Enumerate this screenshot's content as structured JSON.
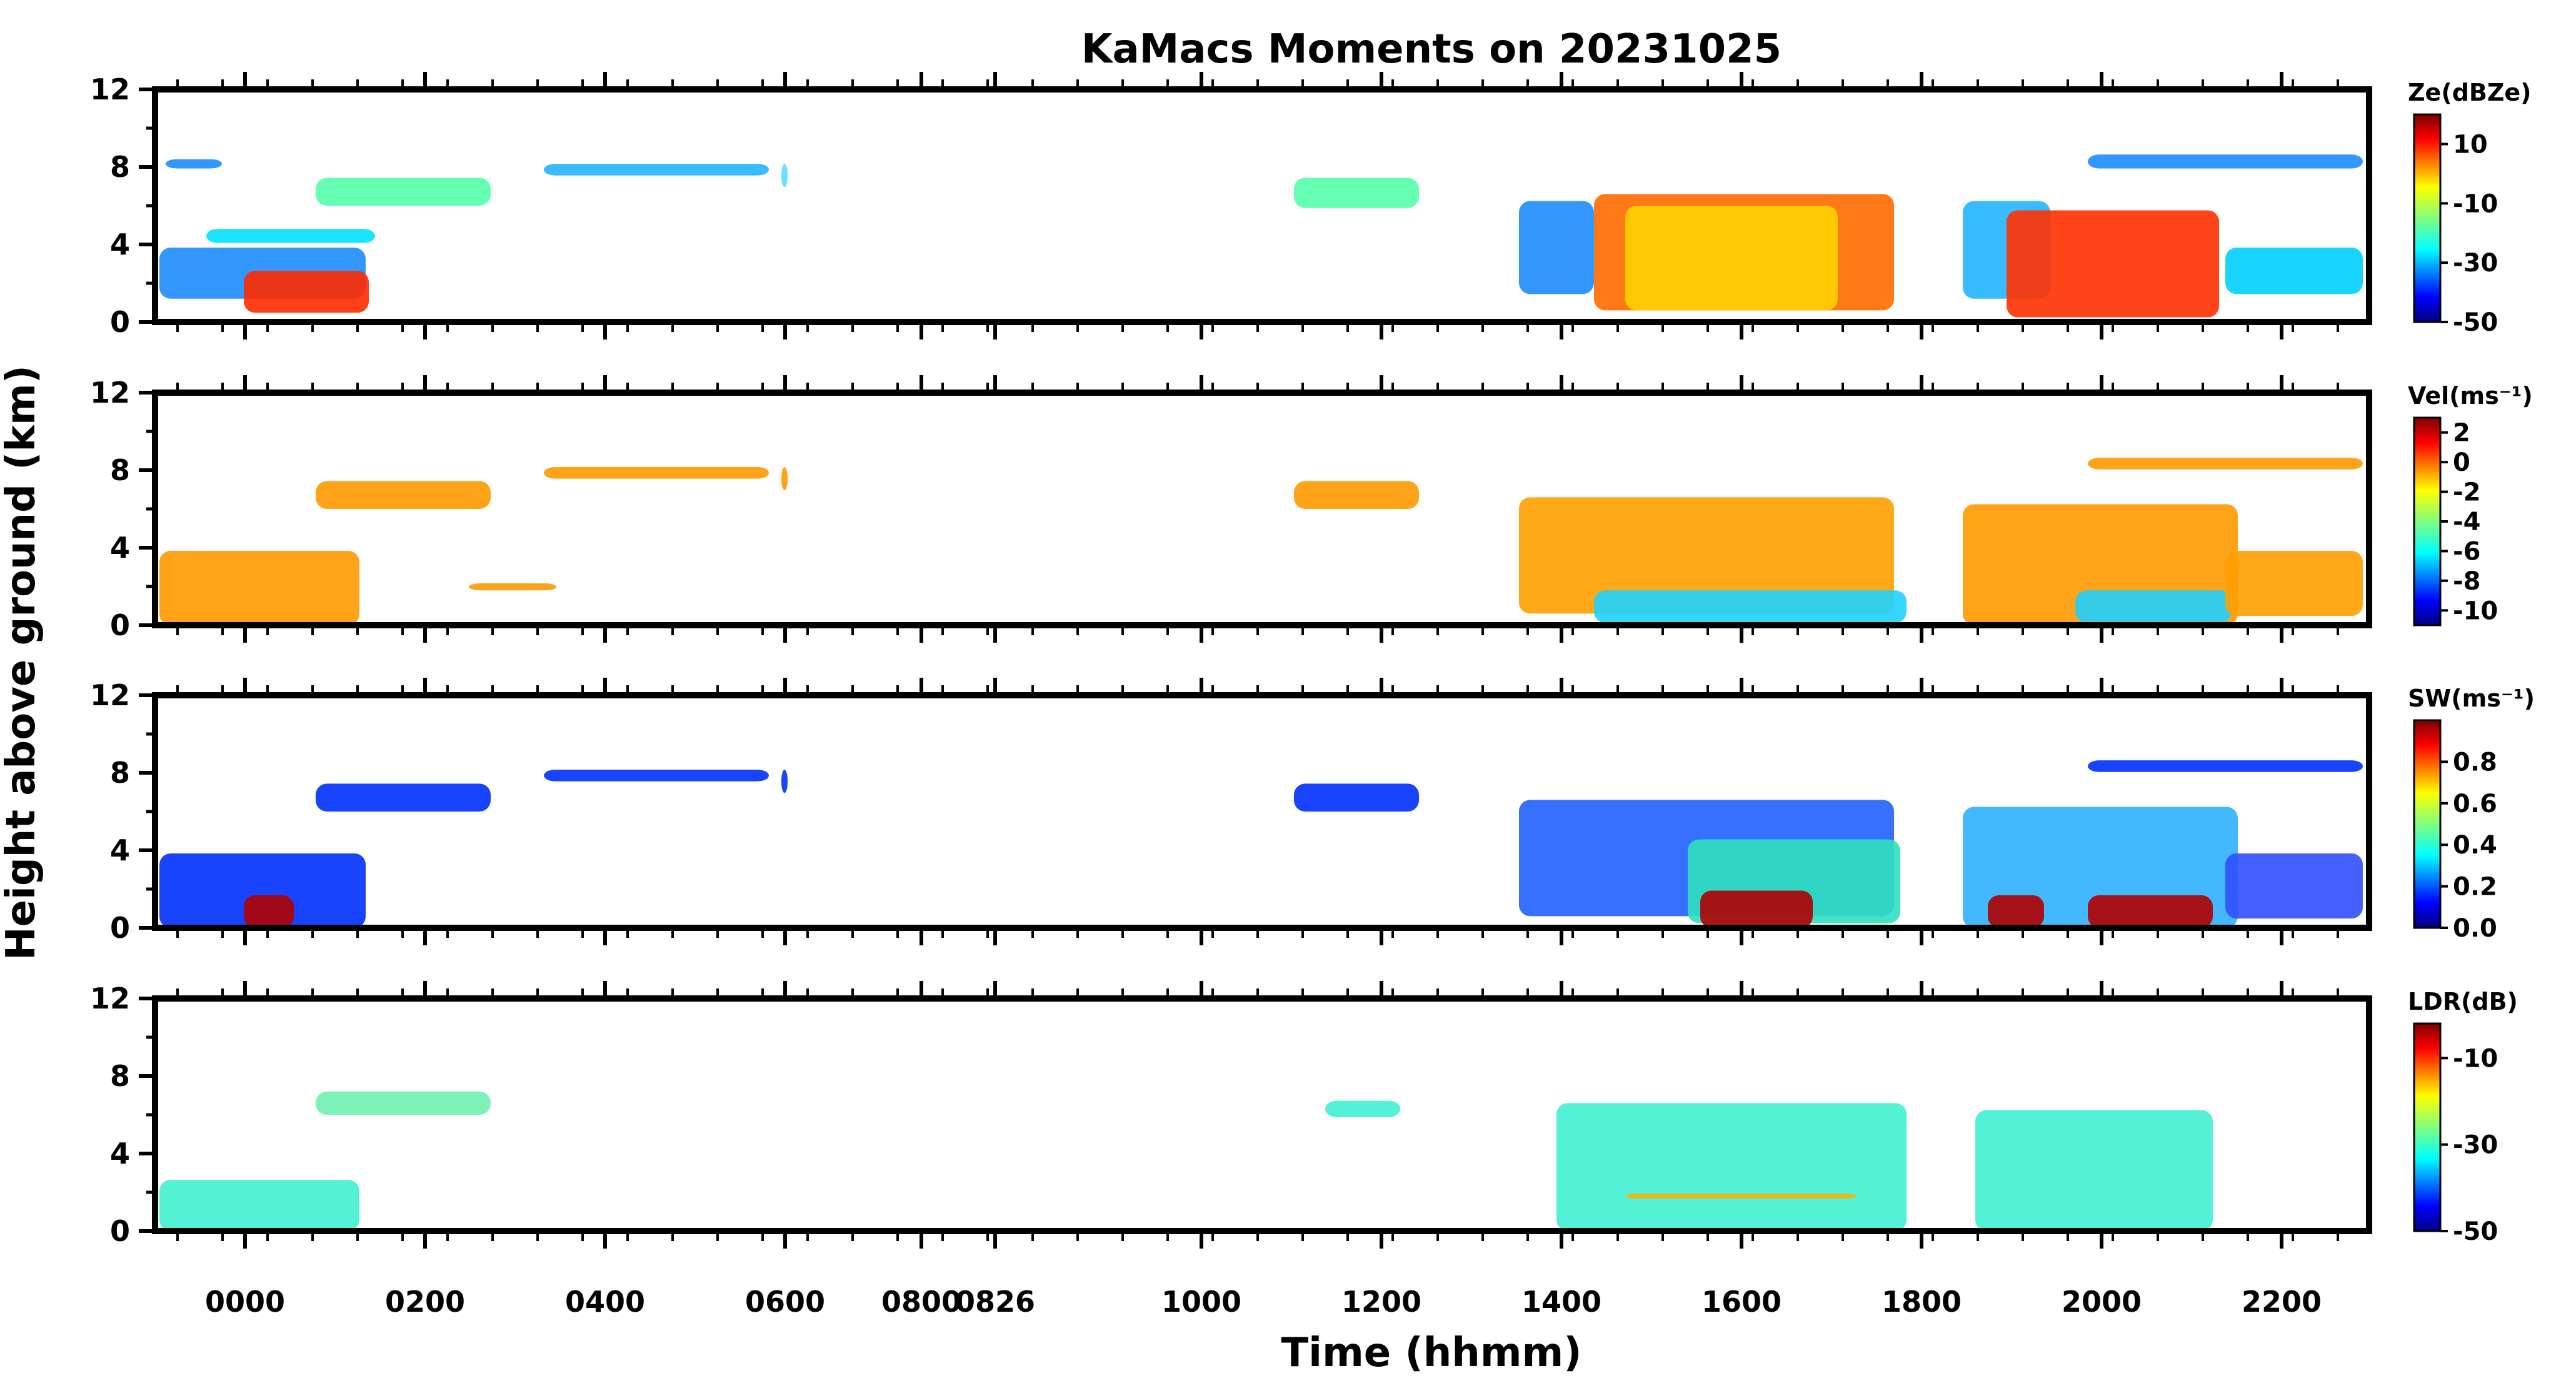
{
  "figure": {
    "title": "KaMacs Moments on 20231025",
    "ylabel": "Height above ground (km)",
    "xlabel": "Time (hhmm)"
  },
  "chart_data": [
    {
      "type": "heatmap",
      "title": "",
      "variable_label": "Ze(dBZe)",
      "colorbar": {
        "ticks": [
          "10",
          "-10",
          "-30",
          "-50"
        ],
        "range": [
          -50,
          20
        ]
      },
      "yticks": [
        "0",
        "4",
        "8",
        "12"
      ],
      "ylim": [
        0,
        12
      ]
    },
    {
      "type": "heatmap",
      "title": "",
      "variable_label": "Vel(ms⁻¹)",
      "colorbar": {
        "ticks": [
          "2",
          "0",
          "-2",
          "-4",
          "-6",
          "-8",
          "-10"
        ],
        "range": [
          -11,
          3
        ]
      },
      "yticks": [
        "0",
        "4",
        "8",
        "12"
      ],
      "ylim": [
        0,
        12
      ]
    },
    {
      "type": "heatmap",
      "title": "",
      "variable_label": "SW(ms⁻¹)",
      "colorbar": {
        "ticks": [
          "0.8",
          "0.6",
          "0.4",
          "0.2",
          "0.0"
        ],
        "range": [
          0,
          1.0
        ]
      },
      "yticks": [
        "0",
        "4",
        "8",
        "12"
      ],
      "ylim": [
        0,
        12
      ]
    },
    {
      "type": "heatmap",
      "title": "",
      "variable_label": "LDR(dB)",
      "colorbar": {
        "ticks": [
          "-10",
          "-30",
          "-50"
        ],
        "range": [
          -50,
          -2
        ]
      },
      "yticks": [
        "0",
        "4",
        "8",
        "12"
      ],
      "ylim": [
        0,
        12
      ]
    }
  ],
  "xticks": [
    "0000",
    "0200",
    "0400",
    "0600",
    "0800",
    "0826",
    "1000",
    "1200",
    "1400",
    "1600",
    "1800",
    "2000",
    "2200"
  ],
  "colormap": [
    "#00007f",
    "#0000ff",
    "#0080ff",
    "#00ffff",
    "#80ff80",
    "#ffff00",
    "#ff8000",
    "#ff0000",
    "#7f0000"
  ]
}
